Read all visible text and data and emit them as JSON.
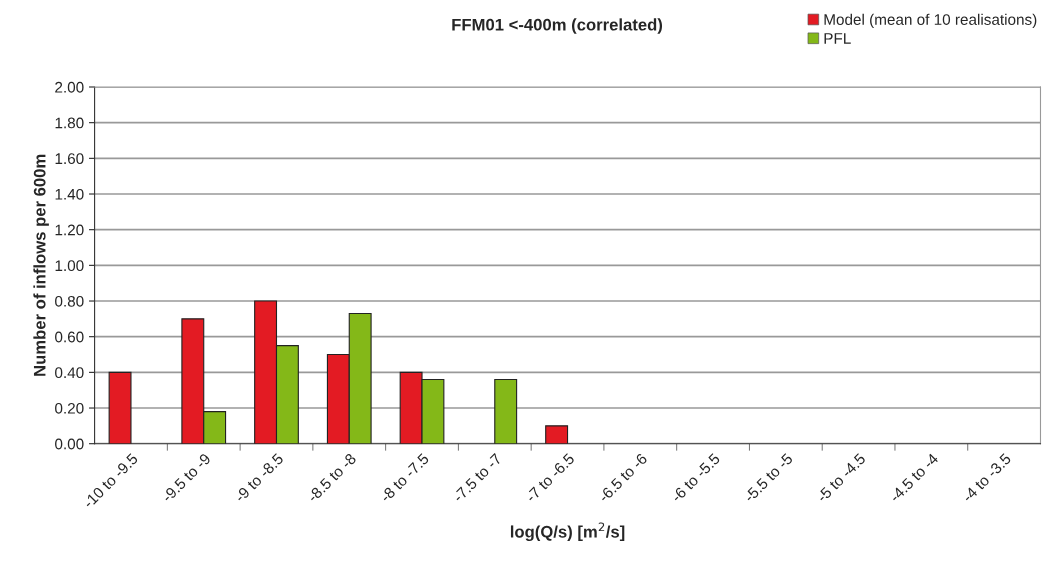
{
  "chart_data": {
    "type": "bar",
    "title": "FFM01 <-400m (correlated)",
    "xlabel": "log(Q/s) [m$^{2}$/s]",
    "ylabel": "Number of inflows per 600m",
    "categories": [
      "-10 to -9.5",
      "-9.5 to -9",
      "-9 to -8.5",
      "-8.5 to -8",
      "-8 to -7.5",
      "-7.5 to -7",
      "-7 to -6.5",
      "-6.5 to -6",
      "-6 to -5.5",
      "-5.5 to -5",
      "-5 to -4.5",
      "-4.5 to -4",
      "-4 to -3.5"
    ],
    "series": [
      {
        "name": "Model (mean of 10 realisations)",
        "color": "#e31b23",
        "values": [
          0.4,
          0.7,
          0.8,
          0.5,
          0.4,
          0,
          0.1,
          0,
          0,
          0,
          0,
          0,
          0
        ]
      },
      {
        "name": "PFL",
        "color": "#84b818",
        "values": [
          0,
          0.18,
          0.55,
          0.73,
          0.36,
          0.36,
          0,
          0,
          0,
          0,
          0,
          0,
          0
        ]
      }
    ],
    "ylim": [
      0,
      2
    ],
    "yticks": [
      {
        "value": 0,
        "label": "0.00"
      },
      {
        "value": 0.2,
        "label": "0.20"
      },
      {
        "value": 0.4,
        "label": "0.40"
      },
      {
        "value": 0.6,
        "label": "0.60"
      },
      {
        "value": 0.8,
        "label": "0.80"
      },
      {
        "value": 1.0,
        "label": "1.00"
      },
      {
        "value": 1.2,
        "label": "1.20"
      },
      {
        "value": 1.4,
        "label": "1.40"
      },
      {
        "value": 1.6,
        "label": "1.60"
      },
      {
        "value": 1.8,
        "label": "1.80"
      },
      {
        "value": 2.0,
        "label": "2.00"
      }
    ],
    "grid": "y",
    "legend": "top right"
  }
}
